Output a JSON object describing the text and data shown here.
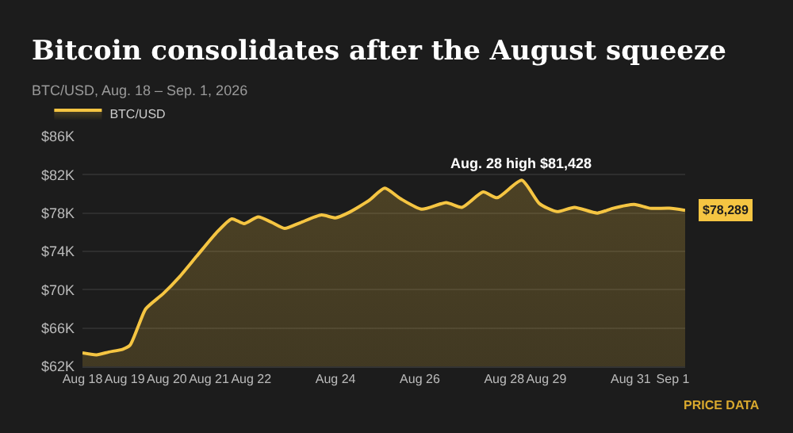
{
  "chart_data": {
    "type": "area",
    "title": "Bitcoin consolidates after the August squeeze",
    "subtitle": "BTC/USD, Aug. 18 – Sep. 1, 2026",
    "x": [
      "2026-08-18T00:00",
      "2026-08-18T08:00",
      "2026-08-18T15:00",
      "2026-08-18T23:00",
      "2026-08-19T03:00",
      "2026-08-19T08:00",
      "2026-08-19T12:00",
      "2026-08-19T22:00",
      "2026-08-20T07:00",
      "2026-08-20T17:00",
      "2026-08-21T04:00",
      "2026-08-21T13:00",
      "2026-08-21T20:00",
      "2026-08-22T04:00",
      "2026-08-22T12:00",
      "2026-08-22T19:00",
      "2026-08-23T04:00",
      "2026-08-23T16:00",
      "2026-08-24T00:00",
      "2026-08-24T07:00",
      "2026-08-24T19:00",
      "2026-08-25T04:00",
      "2026-08-25T13:00",
      "2026-08-26T01:00",
      "2026-08-26T15:00",
      "2026-08-27T00:00",
      "2026-08-27T12:00",
      "2026-08-27T20:00",
      "2026-08-28T10:00",
      "2026-08-28T20:00",
      "2026-08-29T06:00",
      "2026-08-29T16:00",
      "2026-08-30T05:00",
      "2026-08-30T14:00",
      "2026-08-31T02:00",
      "2026-08-31T11:00",
      "2026-08-31T22:00",
      "2026-09-01T07:00"
    ],
    "series": [
      {
        "name": "BTC/USD",
        "color": "#f5c542",
        "values": [
          63400,
          63200,
          63500,
          63800,
          64200,
          66300,
          68000,
          69600,
          71300,
          73500,
          75900,
          77400,
          76900,
          77600,
          77000,
          76400,
          77000,
          77800,
          77500,
          78000,
          79300,
          80600,
          79500,
          78400,
          79100,
          78600,
          80200,
          79600,
          81428,
          79000,
          78150,
          78600,
          78000,
          78500,
          78900,
          78500,
          78500,
          78289
        ]
      }
    ],
    "xlim": [
      "2026-08-18T00:00",
      "2026-09-01T07:00"
    ],
    "xticks": [
      {
        "value": "2026-08-18",
        "label": "Aug 18"
      },
      {
        "value": "2026-08-19",
        "label": "Aug 19"
      },
      {
        "value": "2026-08-20",
        "label": "Aug 20"
      },
      {
        "value": "2026-08-21",
        "label": "Aug 21"
      },
      {
        "value": "2026-08-22",
        "label": "Aug 22"
      },
      {
        "value": "2026-08-24",
        "label": "Aug 24"
      },
      {
        "value": "2026-08-26",
        "label": "Aug 26"
      },
      {
        "value": "2026-08-28",
        "label": "Aug 28"
      },
      {
        "value": "2026-08-29",
        "label": "Aug 29"
      },
      {
        "value": "2026-08-31",
        "label": "Aug 31"
      },
      {
        "value": "2026-09-01",
        "label": "Sep 1"
      }
    ],
    "ylim": [
      62000,
      86000
    ],
    "yticks": [
      {
        "value": 62000,
        "label": "$62K"
      },
      {
        "value": 66000,
        "label": "$66K"
      },
      {
        "value": 70000,
        "label": "$70K"
      },
      {
        "value": 74000,
        "label": "$74K"
      },
      {
        "value": 78000,
        "label": "$78K"
      },
      {
        "value": 82000,
        "label": "$82K"
      },
      {
        "value": 86000,
        "label": "$86K"
      }
    ],
    "grid": "y",
    "legend": "top left",
    "marker": "none",
    "line_style": "solid",
    "annotations": [
      {
        "text": "Aug. 28 high $81,428",
        "x": "2026-08-28T10:00",
        "y": 81428
      },
      {
        "text": "$78,289",
        "x": "2026-09-01T07:00",
        "y": 78289
      },
      "PRICE DATA"
    ]
  }
}
